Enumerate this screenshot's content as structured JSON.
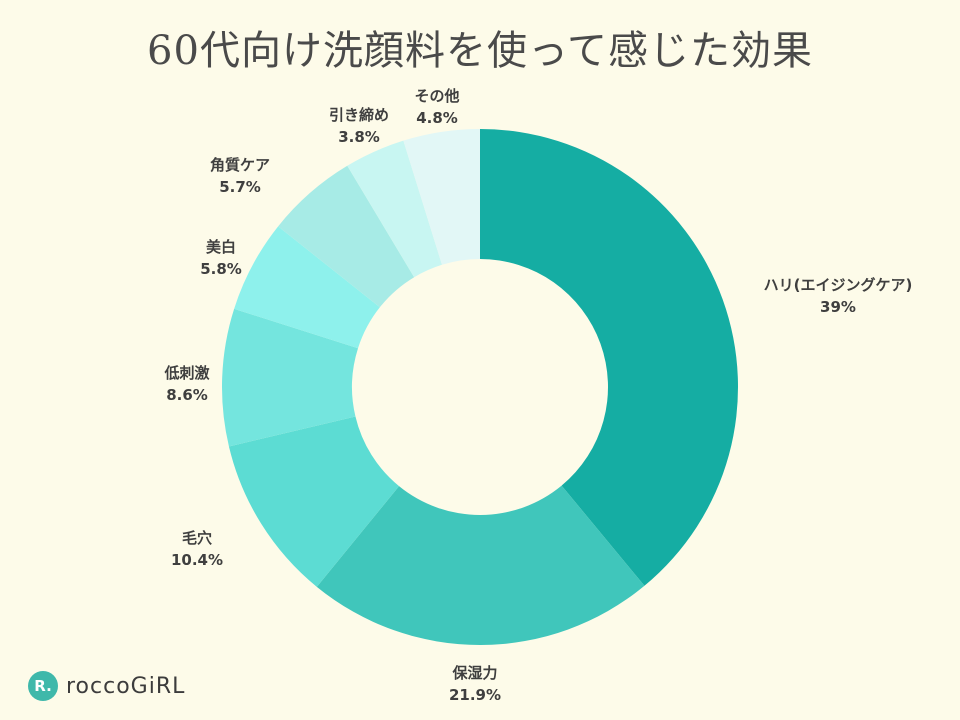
{
  "chart_data": {
    "type": "pie",
    "title": "60代向け洗顔料を使って感じた効果",
    "slices": [
      {
        "label": "ハリ(エイジングケア)",
        "value": 39,
        "display": "39%",
        "color": "#15ada3"
      },
      {
        "label": "保湿力",
        "value": 21.9,
        "display": "21.9%",
        "color": "#40c6bb"
      },
      {
        "label": "毛穴",
        "value": 10.4,
        "display": "10.4%",
        "color": "#5cdcd3"
      },
      {
        "label": "低刺激",
        "value": 8.6,
        "display": "8.6%",
        "color": "#74e5de"
      },
      {
        "label": "美白",
        "value": 5.8,
        "display": "5.8%",
        "color": "#8ef1ec"
      },
      {
        "label": "角質ケア",
        "value": 5.7,
        "display": "5.7%",
        "color": "#a7ebe6"
      },
      {
        "label": "引き締め",
        "value": 3.8,
        "display": "3.8%",
        "color": "#c8f6f2"
      },
      {
        "label": "その他",
        "value": 4.8,
        "display": "4.8%",
        "color": "#e2f7f6"
      }
    ],
    "donut": true
  },
  "brand": {
    "name": "roccoGiRL",
    "mark": "R."
  }
}
